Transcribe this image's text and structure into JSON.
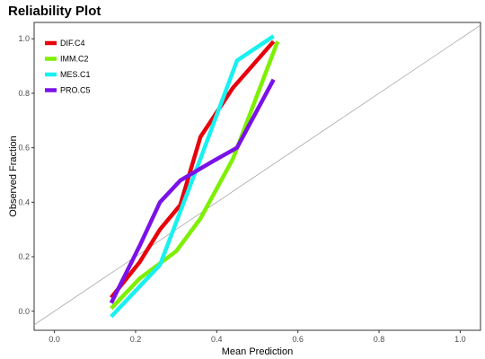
{
  "chart_data": {
    "type": "line",
    "title": "Reliability Plot",
    "xlabel": "Mean Prediction",
    "ylabel": "Observed Fraction",
    "xlim": [
      -0.05,
      1.05
    ],
    "ylim": [
      -0.07,
      1.06
    ],
    "x_ticks": [
      "0.0",
      "0.2",
      "0.4",
      "0.6",
      "0.8",
      "1.0"
    ],
    "y_ticks": [
      "0.0",
      "0.2",
      "0.4",
      "0.6",
      "0.8",
      "1.0"
    ],
    "grid": false,
    "legend_position": "top-left",
    "reference_line": {
      "from": [
        -0.05,
        -0.05
      ],
      "to": [
        1.05,
        1.05
      ],
      "color": "#9e9e9e"
    },
    "series": [
      {
        "name": "DIF.C4",
        "color": "#e8000b",
        "points": [
          [
            0.14,
            0.05
          ],
          [
            0.21,
            0.18
          ],
          [
            0.26,
            0.3
          ],
          [
            0.31,
            0.39
          ],
          [
            0.36,
            0.64
          ],
          [
            0.44,
            0.82
          ],
          [
            0.54,
            0.99
          ]
        ]
      },
      {
        "name": "IMM.C2",
        "color": "#7df000",
        "points": [
          [
            0.14,
            0.01
          ],
          [
            0.21,
            0.12
          ],
          [
            0.3,
            0.22
          ],
          [
            0.36,
            0.34
          ],
          [
            0.44,
            0.56
          ],
          [
            0.55,
            0.99
          ]
        ]
      },
      {
        "name": "MES.C1",
        "color": "#19f0f0",
        "points": [
          [
            0.14,
            -0.02
          ],
          [
            0.26,
            0.17
          ],
          [
            0.36,
            0.56
          ],
          [
            0.45,
            0.92
          ],
          [
            0.54,
            1.01
          ]
        ]
      },
      {
        "name": "PRO.C5",
        "color": "#7a12e8",
        "points": [
          [
            0.14,
            0.03
          ],
          [
            0.21,
            0.24
          ],
          [
            0.26,
            0.4
          ],
          [
            0.31,
            0.48
          ],
          [
            0.39,
            0.55
          ],
          [
            0.45,
            0.6
          ],
          [
            0.54,
            0.85
          ]
        ]
      }
    ]
  }
}
